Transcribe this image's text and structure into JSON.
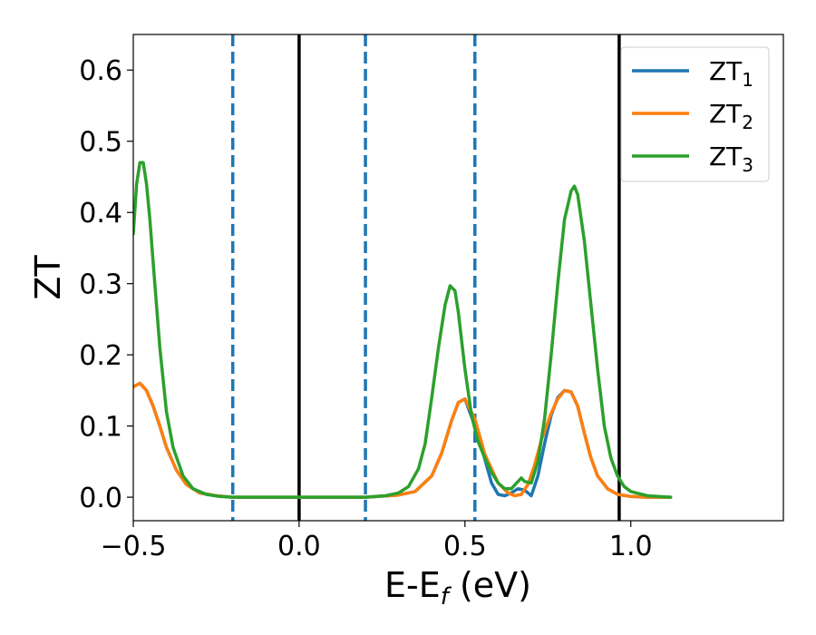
{
  "chart_data": {
    "type": "line",
    "xlabel": "E-E",
    "xlabel_subscript": "f",
    "xlabel_unit": " (eV)",
    "ylabel": "ZT",
    "xlim": [
      -0.5,
      1.46
    ],
    "ylim": [
      -0.033,
      0.65
    ],
    "x_ticks": [
      -0.5,
      0.0,
      0.5,
      1.0
    ],
    "x_tick_labels": [
      "−0.5",
      "0.0",
      "0.5",
      "1.0"
    ],
    "y_ticks": [
      0.0,
      0.1,
      0.2,
      0.3,
      0.4,
      0.5,
      0.6
    ],
    "y_tick_labels": [
      "0.0",
      "0.1",
      "0.2",
      "0.3",
      "0.4",
      "0.5",
      "0.6"
    ],
    "grid": false,
    "legend_position": "top-right",
    "vertical_lines": [
      {
        "x": -0.2,
        "style": "dashed",
        "color": "#1f77b4"
      },
      {
        "x": 0.0,
        "style": "solid",
        "color": "#000000"
      },
      {
        "x": 0.2,
        "style": "dashed",
        "color": "#1f77b4"
      },
      {
        "x": 0.53,
        "style": "dashed",
        "color": "#1f77b4"
      },
      {
        "x": 0.965,
        "style": "solid",
        "color": "#000000"
      }
    ],
    "series": [
      {
        "name": "ZT",
        "subscript": "1",
        "color": "#1f77b4",
        "x": [
          -0.5,
          -0.48,
          -0.46,
          -0.44,
          -0.42,
          -0.4,
          -0.37,
          -0.34,
          -0.3,
          -0.25,
          -0.2,
          -0.1,
          0.0,
          0.1,
          0.2,
          0.3,
          0.35,
          0.4,
          0.43,
          0.46,
          0.48,
          0.5,
          0.53,
          0.55,
          0.58,
          0.6,
          0.62,
          0.64,
          0.66,
          0.68,
          0.7,
          0.72,
          0.74,
          0.76,
          0.78,
          0.8,
          0.82,
          0.84,
          0.86,
          0.88,
          0.9,
          0.93,
          0.96,
          1.0,
          1.05,
          1.12
        ],
        "y": [
          0.155,
          0.16,
          0.15,
          0.128,
          0.1,
          0.07,
          0.038,
          0.018,
          0.006,
          0.002,
          0.0,
          0.0,
          0.0,
          0.0,
          0.0,
          0.003,
          0.008,
          0.03,
          0.062,
          0.108,
          0.133,
          0.138,
          0.1,
          0.07,
          0.02,
          0.004,
          0.002,
          0.006,
          0.012,
          0.01,
          0.002,
          0.03,
          0.075,
          0.115,
          0.14,
          0.15,
          0.148,
          0.128,
          0.09,
          0.055,
          0.03,
          0.012,
          0.004,
          0.001,
          0.0,
          0.0
        ]
      },
      {
        "name": "ZT",
        "subscript": "2",
        "color": "#ff7f0e",
        "x": [
          -0.5,
          -0.48,
          -0.46,
          -0.44,
          -0.42,
          -0.4,
          -0.37,
          -0.34,
          -0.3,
          -0.25,
          -0.2,
          -0.1,
          0.0,
          0.1,
          0.2,
          0.3,
          0.35,
          0.4,
          0.43,
          0.46,
          0.48,
          0.5,
          0.53,
          0.56,
          0.6,
          0.63,
          0.65,
          0.67,
          0.69,
          0.71,
          0.73,
          0.76,
          0.78,
          0.8,
          0.82,
          0.84,
          0.86,
          0.88,
          0.9,
          0.93,
          0.96,
          1.0,
          1.05,
          1.12
        ],
        "y": [
          0.155,
          0.16,
          0.15,
          0.128,
          0.1,
          0.07,
          0.038,
          0.018,
          0.006,
          0.002,
          0.0,
          0.0,
          0.0,
          0.0,
          0.0,
          0.003,
          0.008,
          0.03,
          0.062,
          0.108,
          0.133,
          0.138,
          0.11,
          0.06,
          0.02,
          0.006,
          0.002,
          0.004,
          0.018,
          0.045,
          0.08,
          0.118,
          0.138,
          0.15,
          0.148,
          0.128,
          0.09,
          0.055,
          0.03,
          0.012,
          0.004,
          0.001,
          0.0,
          0.0
        ]
      },
      {
        "name": "ZT",
        "subscript": "3",
        "color": "#2ca02c",
        "x": [
          -0.5,
          -0.49,
          -0.48,
          -0.47,
          -0.46,
          -0.45,
          -0.44,
          -0.43,
          -0.42,
          -0.4,
          -0.38,
          -0.35,
          -0.32,
          -0.28,
          -0.24,
          -0.2,
          -0.1,
          0.0,
          0.1,
          0.2,
          0.26,
          0.3,
          0.33,
          0.36,
          0.38,
          0.4,
          0.42,
          0.44,
          0.455,
          0.47,
          0.48,
          0.5,
          0.52,
          0.54,
          0.56,
          0.58,
          0.6,
          0.62,
          0.64,
          0.66,
          0.67,
          0.68,
          0.7,
          0.72,
          0.74,
          0.76,
          0.78,
          0.8,
          0.82,
          0.83,
          0.84,
          0.86,
          0.88,
          0.9,
          0.92,
          0.94,
          0.96,
          0.98,
          1.0,
          1.05,
          1.12
        ],
        "y": [
          0.37,
          0.44,
          0.47,
          0.47,
          0.44,
          0.39,
          0.33,
          0.27,
          0.21,
          0.12,
          0.07,
          0.03,
          0.012,
          0.004,
          0.001,
          0.0,
          0.0,
          0.0,
          0.0,
          0.0,
          0.002,
          0.006,
          0.015,
          0.04,
          0.075,
          0.14,
          0.21,
          0.27,
          0.297,
          0.29,
          0.26,
          0.18,
          0.115,
          0.078,
          0.055,
          0.035,
          0.02,
          0.012,
          0.012,
          0.022,
          0.027,
          0.022,
          0.02,
          0.05,
          0.11,
          0.2,
          0.3,
          0.39,
          0.43,
          0.437,
          0.425,
          0.36,
          0.27,
          0.18,
          0.1,
          0.055,
          0.03,
          0.015,
          0.008,
          0.002,
          0.0
        ]
      }
    ]
  }
}
